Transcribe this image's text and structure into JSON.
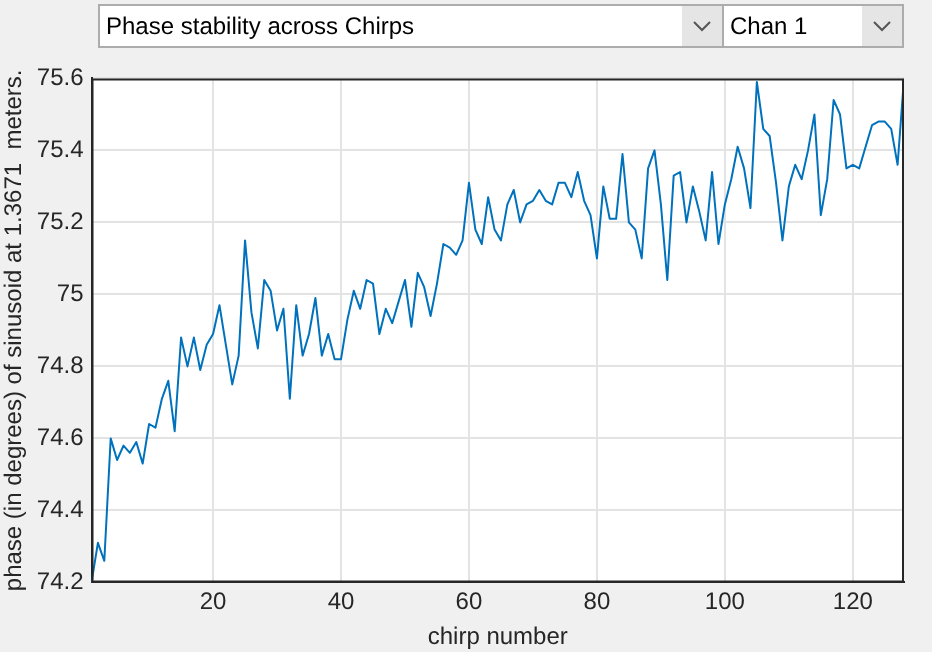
{
  "chart_data": {
    "type": "line",
    "annotations": [
      "Phase stability across Chirps",
      "Chan 1"
    ],
    "xlabel": "chirp number",
    "ylabel": "phase (in degrees) of sinusoid at 1.3671  meters.",
    "x": [
      1,
      2,
      3,
      4,
      5,
      6,
      7,
      8,
      9,
      10,
      11,
      12,
      13,
      14,
      15,
      16,
      17,
      18,
      19,
      20,
      21,
      22,
      23,
      24,
      25,
      26,
      27,
      28,
      29,
      30,
      31,
      32,
      33,
      34,
      35,
      36,
      37,
      38,
      39,
      40,
      41,
      42,
      43,
      44,
      45,
      46,
      47,
      48,
      49,
      50,
      51,
      52,
      53,
      54,
      55,
      56,
      57,
      58,
      59,
      60,
      61,
      62,
      63,
      64,
      65,
      66,
      67,
      68,
      69,
      70,
      71,
      72,
      73,
      74,
      75,
      76,
      77,
      78,
      79,
      80,
      81,
      82,
      83,
      84,
      85,
      86,
      87,
      88,
      89,
      90,
      91,
      92,
      93,
      94,
      95,
      96,
      97,
      98,
      99,
      100,
      101,
      102,
      103,
      104,
      105,
      106,
      107,
      108,
      109,
      110,
      111,
      112,
      113,
      114,
      115,
      116,
      117,
      118,
      119,
      120,
      121,
      122,
      123,
      124,
      125,
      126,
      127,
      128
    ],
    "series": [
      {
        "color": "#0072bd",
        "values": [
          74.2,
          74.31,
          74.26,
          74.6,
          74.54,
          74.58,
          74.56,
          74.59,
          74.53,
          74.64,
          74.63,
          74.71,
          74.76,
          74.62,
          74.88,
          74.8,
          74.88,
          74.79,
          74.86,
          74.89,
          74.97,
          74.86,
          74.75,
          74.83,
          75.15,
          74.95,
          74.85,
          75.04,
          75.01,
          74.9,
          74.96,
          74.71,
          74.97,
          74.83,
          74.89,
          74.99,
          74.83,
          74.89,
          74.82,
          74.82,
          74.93,
          75.01,
          74.96,
          75.04,
          75.03,
          74.89,
          74.96,
          74.92,
          74.98,
          75.04,
          74.91,
          75.06,
          75.02,
          74.94,
          75.03,
          75.14,
          75.13,
          75.11,
          75.15,
          75.31,
          75.18,
          75.14,
          75.27,
          75.18,
          75.15,
          75.25,
          75.29,
          75.2,
          75.25,
          75.26,
          75.29,
          75.26,
          75.25,
          75.31,
          75.31,
          75.27,
          75.34,
          75.26,
          75.22,
          75.1,
          75.3,
          75.21,
          75.21,
          75.39,
          75.2,
          75.18,
          75.1,
          75.35,
          75.4,
          75.25,
          75.04,
          75.33,
          75.34,
          75.2,
          75.3,
          75.23,
          75.15,
          75.34,
          75.14,
          75.25,
          75.32,
          75.41,
          75.35,
          75.24,
          75.59,
          75.46,
          75.44,
          75.31,
          75.15,
          75.3,
          75.36,
          75.32,
          75.4,
          75.5,
          75.22,
          75.32,
          75.54,
          75.5,
          75.35,
          75.36,
          75.35,
          75.41,
          75.47,
          75.48,
          75.48,
          75.46,
          75.36,
          75.6
        ]
      }
    ],
    "xlim": [
      1,
      128
    ],
    "xticks": [
      20,
      40,
      60,
      80,
      100,
      120
    ],
    "ylim": [
      74.2,
      75.6
    ],
    "yticks": [
      74.2,
      74.4,
      74.6,
      74.8,
      75,
      75.2,
      75.4,
      75.6
    ],
    "grid": true,
    "legend": false,
    "marker": "none",
    "line_style": "solid"
  }
}
